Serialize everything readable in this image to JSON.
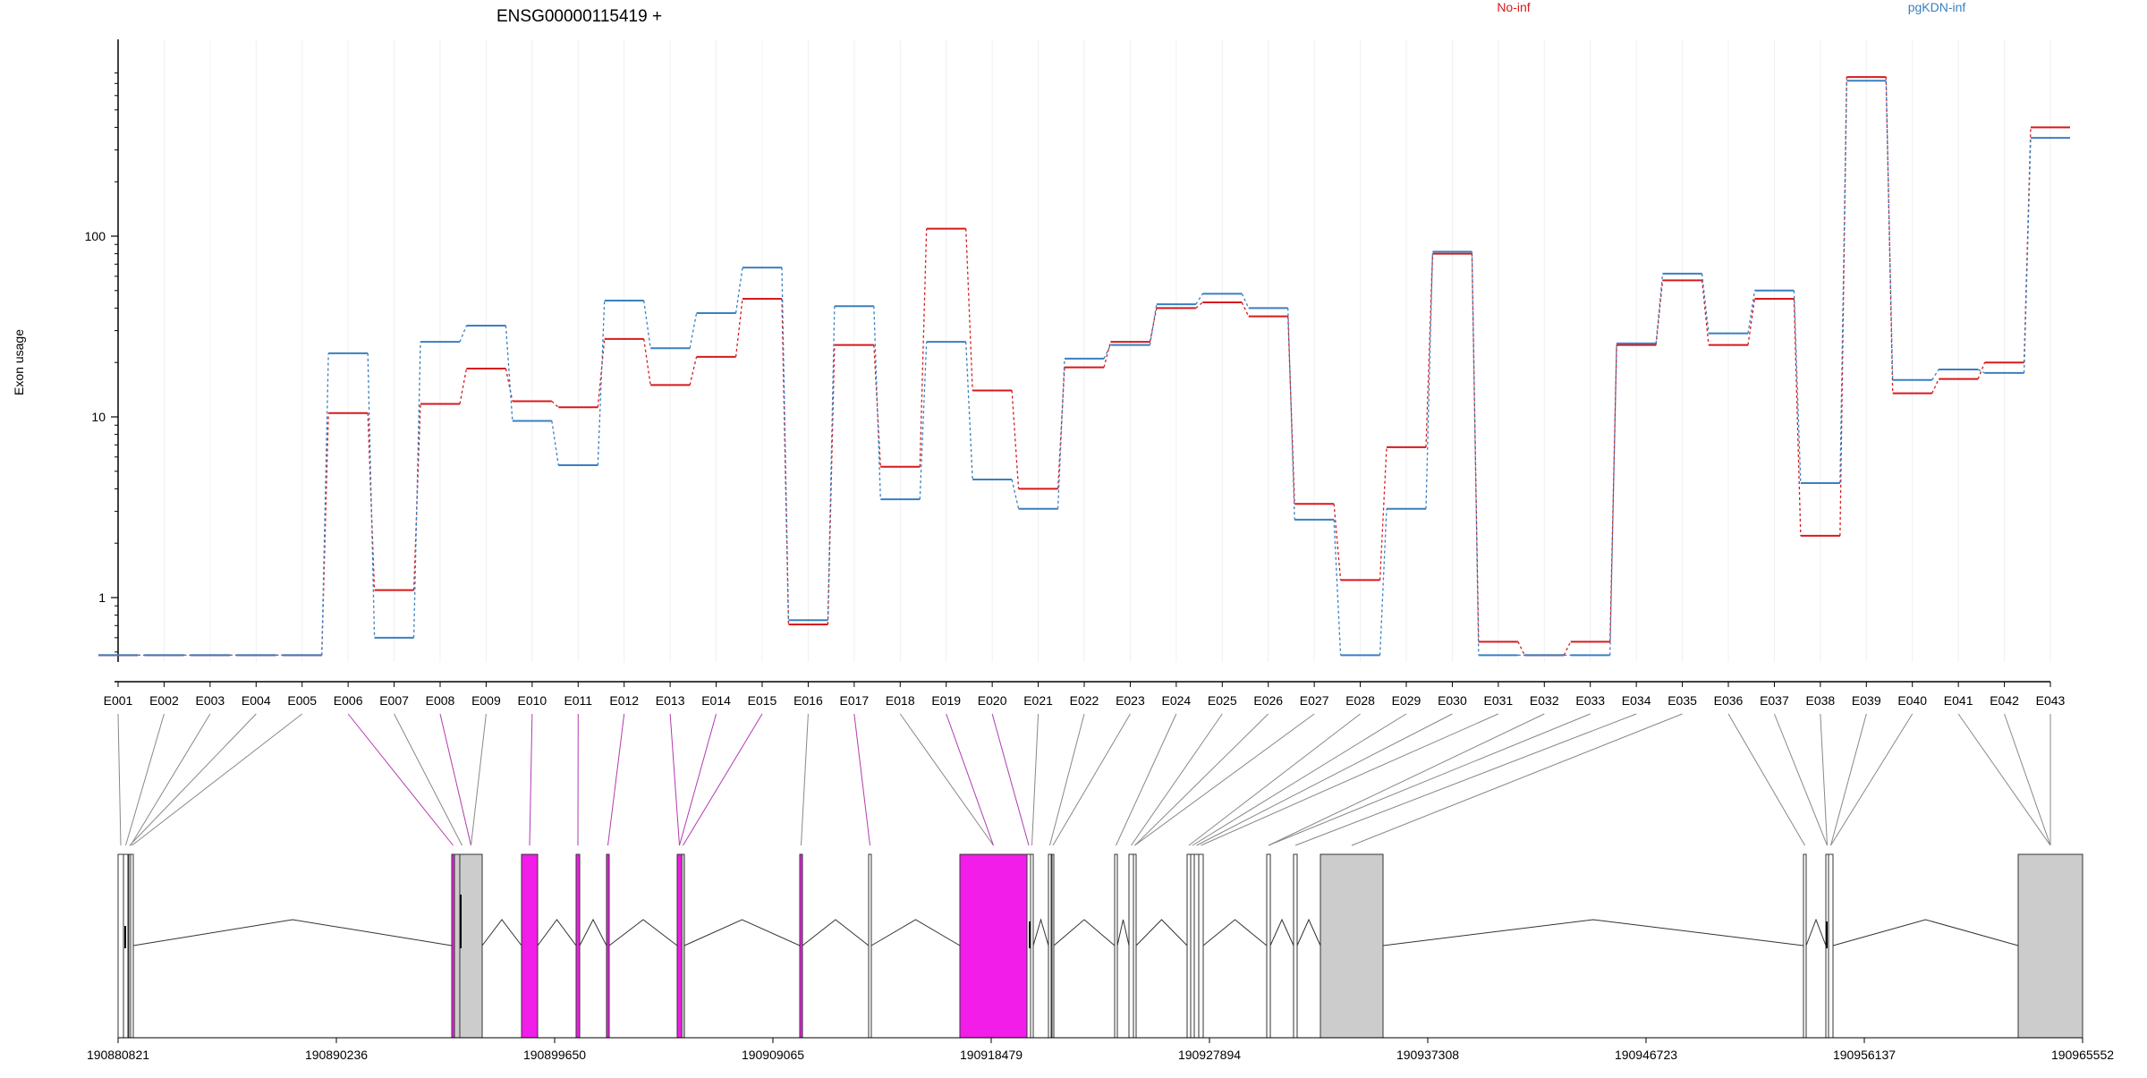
{
  "chart_data": {
    "type": "line",
    "title": "ENSG00000115419 +",
    "ylabel": "Exon usage",
    "yscale": "log",
    "ylim": [
      0.48,
      850
    ],
    "yticks": [
      1,
      10,
      100
    ],
    "grid": "vertical",
    "legend_position": "top-right",
    "categories": [
      "E001",
      "E002",
      "E003",
      "E004",
      "E005",
      "E006",
      "E007",
      "E008",
      "E009",
      "E010",
      "E011",
      "E012",
      "E013",
      "E014",
      "E015",
      "E016",
      "E017",
      "E018",
      "E019",
      "E020",
      "E021",
      "E022",
      "E023",
      "E024",
      "E025",
      "E026",
      "E027",
      "E028",
      "E029",
      "E030",
      "E031",
      "E032",
      "E033",
      "E034",
      "E035",
      "E036",
      "E037",
      "E038",
      "E039",
      "E040",
      "E041",
      "E042",
      "E043"
    ],
    "series": [
      {
        "name": "No-inf",
        "color": "#d7191c",
        "values": [
          0.48,
          0.48,
          0.48,
          0.48,
          0.48,
          10.5,
          1.1,
          11.8,
          18.5,
          12.2,
          11.3,
          27,
          15,
          21.5,
          45,
          0.71,
          25,
          5.3,
          110,
          14,
          4.0,
          18.8,
          26,
          40,
          43,
          36,
          3.3,
          1.25,
          6.8,
          80,
          0.57,
          0.48,
          0.57,
          25,
          57,
          25,
          45,
          2.2,
          760,
          13.5,
          16.2,
          20,
          400
        ]
      },
      {
        "name": "pgKDN-inf",
        "color": "#3a7fc1",
        "values": [
          0.48,
          0.48,
          0.48,
          0.48,
          0.48,
          22.5,
          0.6,
          26,
          32,
          9.5,
          5.4,
          44,
          24,
          37.5,
          67,
          0.75,
          41,
          3.5,
          26,
          4.5,
          3.1,
          21,
          25,
          42,
          48,
          40,
          2.7,
          0.48,
          3.1,
          82,
          0.48,
          0.48,
          0.48,
          25.5,
          62,
          29,
          50,
          4.3,
          725,
          16,
          18.3,
          17.5,
          350
        ]
      }
    ],
    "gene_model": {
      "coordinate_ticks": [
        "190880821",
        "190890236",
        "190899650",
        "190909065",
        "190918479",
        "190927894",
        "190937308",
        "190946723",
        "190956137",
        "190965552"
      ],
      "colors": {
        "highlight": "#f21de8",
        "utr": "#cccccc",
        "exon": "#ffffff",
        "outline": "#333333"
      },
      "highlighted_exons": [
        "E006",
        "E008",
        "E010",
        "E011",
        "E012",
        "E013",
        "E014",
        "E015",
        "E017",
        "E019",
        "E020"
      ]
    }
  }
}
